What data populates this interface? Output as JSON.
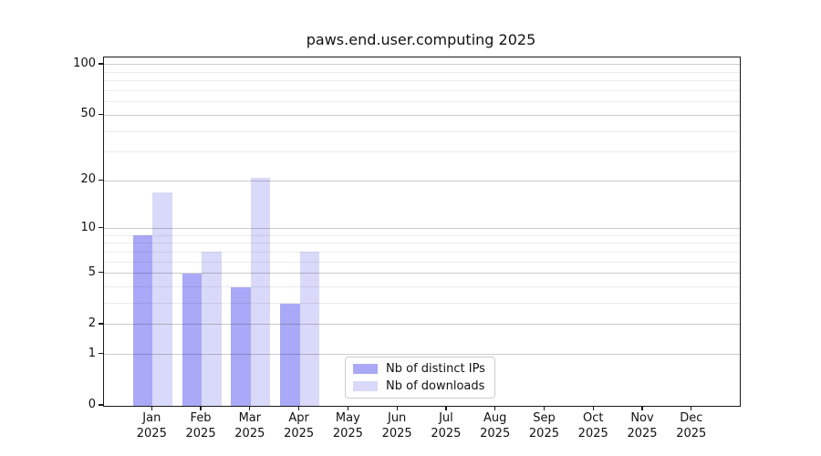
{
  "title": "paws.end.user.computing 2025",
  "chart_data": {
    "type": "bar",
    "title": "paws.end.user.computing 2025",
    "categories": [
      "Jan",
      "Feb",
      "Mar",
      "Apr",
      "May",
      "Jun",
      "Jul",
      "Aug",
      "Sep",
      "Oct",
      "Nov",
      "Dec"
    ],
    "year_label": "2025",
    "series": [
      {
        "name": "Nb of distinct IPs",
        "color": "#a9a9f8",
        "values": [
          9,
          5,
          4,
          3,
          0,
          0,
          0,
          0,
          0,
          0,
          0,
          0
        ]
      },
      {
        "name": "Nb of downloads",
        "color": "#d9d9f9",
        "values": [
          17,
          7,
          21,
          7,
          0,
          0,
          0,
          0,
          0,
          0,
          0,
          0
        ]
      }
    ],
    "xlabel": "",
    "ylabel": "",
    "y_scale": "log1p",
    "y_ticks": [
      0,
      1,
      2,
      5,
      10,
      20,
      50,
      100
    ],
    "y_minor_gridlines": [
      3,
      4,
      6,
      7,
      8,
      9,
      30,
      40,
      60,
      70,
      80,
      90
    ],
    "ylim": [
      0,
      111
    ],
    "grid": true,
    "legend_position": "lower-center",
    "axis_color": "#1a1a1a",
    "major_grid_color": "#cccccc",
    "minor_grid_color": "#ebebeb",
    "background_color": "#ffffff"
  },
  "legend": {
    "items": [
      {
        "label": "Nb of distinct IPs",
        "color": "#a9a9f8"
      },
      {
        "label": "Nb of downloads",
        "color": "#d9d9f9"
      }
    ]
  }
}
